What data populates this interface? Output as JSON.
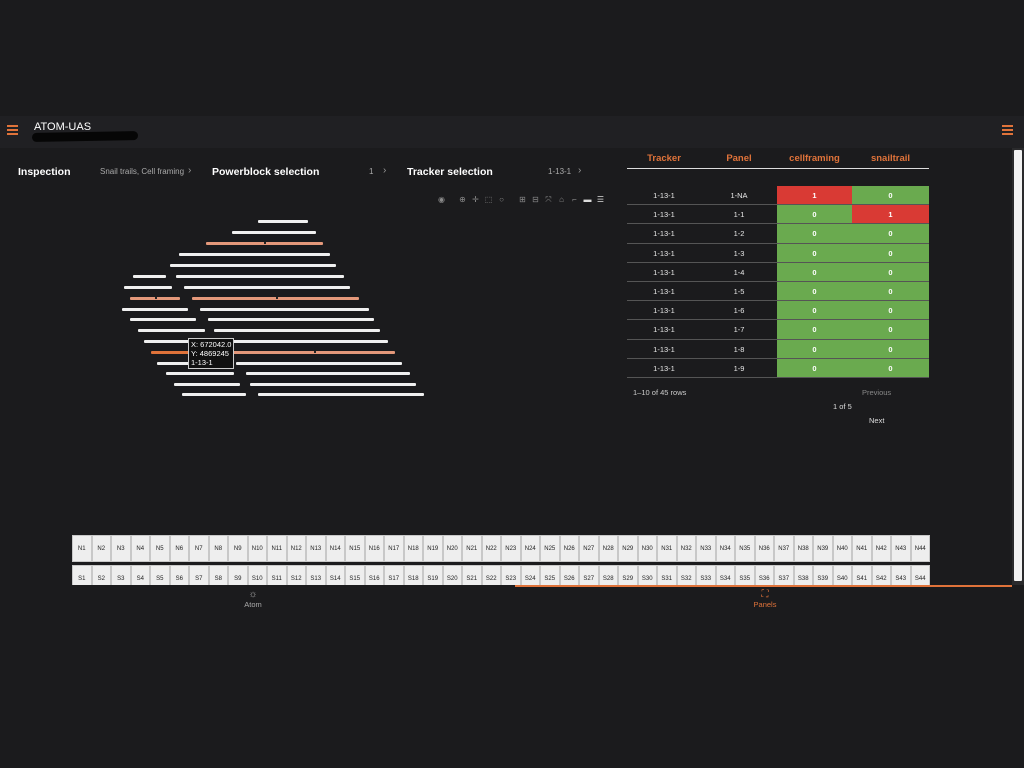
{
  "app": {
    "title": "ATOM-UAS"
  },
  "breadcrumb": {
    "inspection_label": "Inspection",
    "inspection_value": "Snail trails, Cell framing",
    "powerblock_label": "Powerblock selection",
    "powerblock_value": "1",
    "tracker_label": "Tracker selection",
    "tracker_value": "1-13-1"
  },
  "toolbar_icons": [
    "camera-icon",
    "zoom-icon",
    "pan-icon",
    "box-select-icon",
    "lasso-icon",
    "zoom-in-icon",
    "zoom-out-icon",
    "autoscale-icon",
    "home-icon",
    "spike-lines-icon",
    "hover-closest-icon",
    "hover-compare-icon"
  ],
  "plot": {
    "tooltip_x": "X: 672042.0",
    "tooltip_y": "Y: 4869245",
    "tooltip_label": "1-13-1"
  },
  "table": {
    "headers": [
      "Tracker",
      "Panel",
      "cellframing",
      "snailtrail"
    ],
    "rows": [
      [
        "1-13-1",
        "1-NA",
        "1",
        "0"
      ],
      [
        "1-13-1",
        "1-1",
        "0",
        "1"
      ],
      [
        "1-13-1",
        "1-2",
        "0",
        "0"
      ],
      [
        "1-13-1",
        "1-3",
        "0",
        "0"
      ],
      [
        "1-13-1",
        "1-4",
        "0",
        "0"
      ],
      [
        "1-13-1",
        "1-5",
        "0",
        "0"
      ],
      [
        "1-13-1",
        "1-6",
        "0",
        "0"
      ],
      [
        "1-13-1",
        "1-7",
        "0",
        "0"
      ],
      [
        "1-13-1",
        "1-8",
        "0",
        "0"
      ],
      [
        "1-13-1",
        "1-9",
        "0",
        "0"
      ]
    ],
    "rows_summary": "1–10 of 45 rows",
    "previous_label": "Previous",
    "page_info": "1 of 5",
    "next_label": "Next"
  },
  "panel_grid": {
    "north": [
      "N1",
      "N2",
      "N3",
      "N4",
      "N5",
      "N6",
      "N7",
      "N8",
      "N9",
      "N10",
      "N11",
      "N12",
      "N13",
      "N14",
      "N15",
      "N16",
      "N17",
      "N18",
      "N19",
      "N20",
      "N21",
      "N22",
      "N23",
      "N24",
      "N25",
      "N26",
      "N27",
      "N28",
      "N29",
      "N30",
      "N31",
      "N32",
      "N33",
      "N34",
      "N35",
      "N36",
      "N37",
      "N38",
      "N39",
      "N40",
      "N41",
      "N42",
      "N43",
      "N44"
    ],
    "south": [
      "S1",
      "S2",
      "S3",
      "S4",
      "S5",
      "S6",
      "S7",
      "S8",
      "S9",
      "S10",
      "S11",
      "S12",
      "S13",
      "S14",
      "S15",
      "S16",
      "S17",
      "S18",
      "S19",
      "S20",
      "S21",
      "S22",
      "S23",
      "S24",
      "S25",
      "S26",
      "S27",
      "S28",
      "S29",
      "S30",
      "S31",
      "S32",
      "S33",
      "S34",
      "S35",
      "S36",
      "S37",
      "S38",
      "S39",
      "S40",
      "S41",
      "S42",
      "S43",
      "S44"
    ]
  },
  "nav": {
    "atom_label": "Atom",
    "panels_label": "Panels"
  },
  "colors": {
    "accent": "#e0733a",
    "ok": "#6aaa4f",
    "fault": "#d93a34",
    "tracker_default": "#f0f0f0",
    "tracker_flagged": "#e4987a",
    "tracker_selected": "#e0733a"
  }
}
